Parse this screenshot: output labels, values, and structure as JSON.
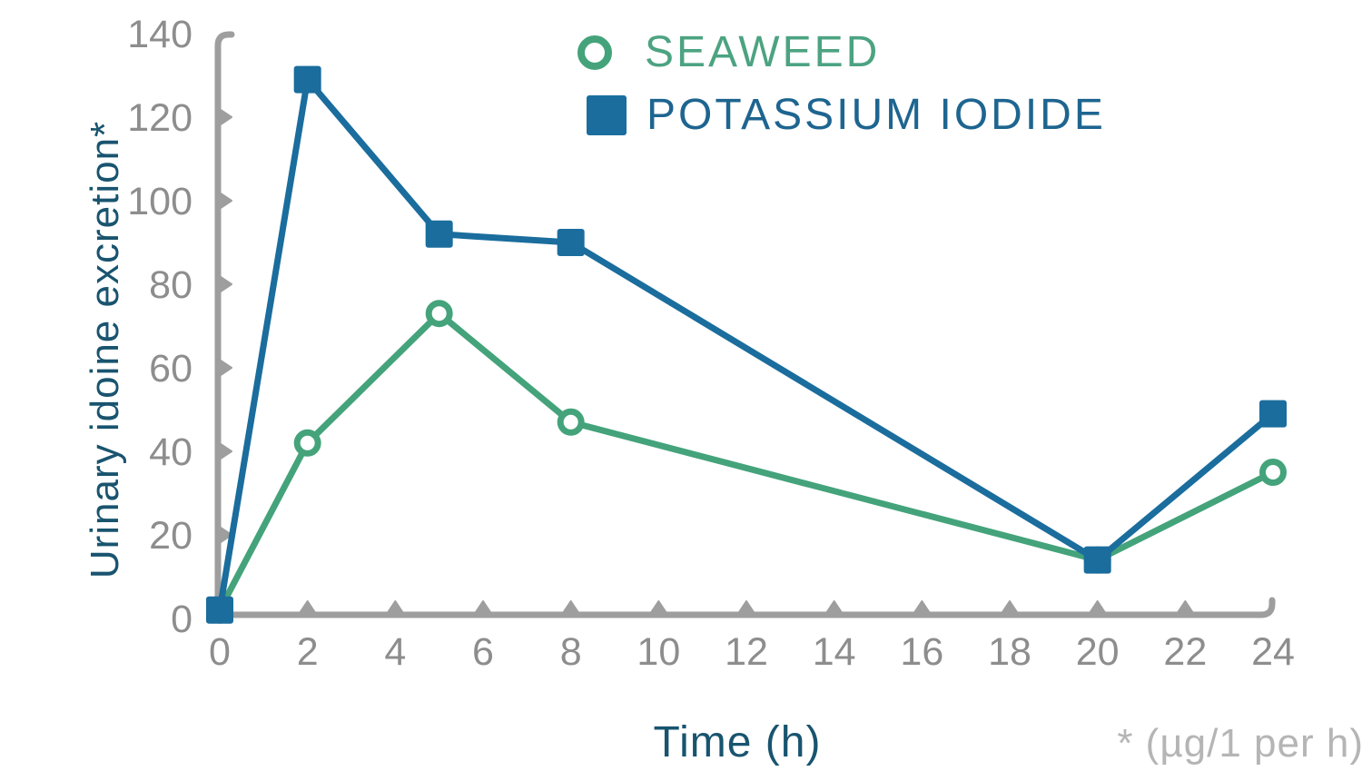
{
  "colors": {
    "seaweed": "#44a37b",
    "potassium": "#1a6d9d",
    "seaweed_label": "#4ca381",
    "potassium_label": "#1e6590",
    "axis": "#9e9e9e",
    "tick_label": "#8d8d8d",
    "axis_title": "#19546f",
    "footnote": "#b5b5b5"
  },
  "chart_data": {
    "type": "line",
    "title": "",
    "xlabel": "Time (h)",
    "ylabel": "Urinary idoine excretion*",
    "footnote": "* (µg/1 per h)",
    "xlim": [
      0,
      24
    ],
    "ylim": [
      0,
      140
    ],
    "x_ticks": [
      0,
      2,
      4,
      6,
      8,
      10,
      12,
      14,
      16,
      18,
      20,
      22,
      24
    ],
    "y_ticks": [
      0,
      20,
      40,
      60,
      80,
      100,
      120,
      140
    ],
    "grid": false,
    "legend_position": "top-center-inside",
    "series": [
      {
        "name": "SEAWEED",
        "marker": "open-circle",
        "color": "#44a37b",
        "label_color": "#4ca381",
        "points": [
          [
            0,
            2
          ],
          [
            2,
            42
          ],
          [
            5,
            73
          ],
          [
            8,
            47
          ],
          [
            20,
            14
          ],
          [
            24,
            35
          ]
        ]
      },
      {
        "name": "POTASSIUM IODIDE",
        "marker": "filled-square",
        "color": "#1a6d9d",
        "label_color": "#1e6590",
        "points": [
          [
            0,
            2
          ],
          [
            2,
            129
          ],
          [
            5,
            92
          ],
          [
            8,
            90
          ],
          [
            20,
            14
          ],
          [
            24,
            49
          ]
        ]
      }
    ]
  }
}
